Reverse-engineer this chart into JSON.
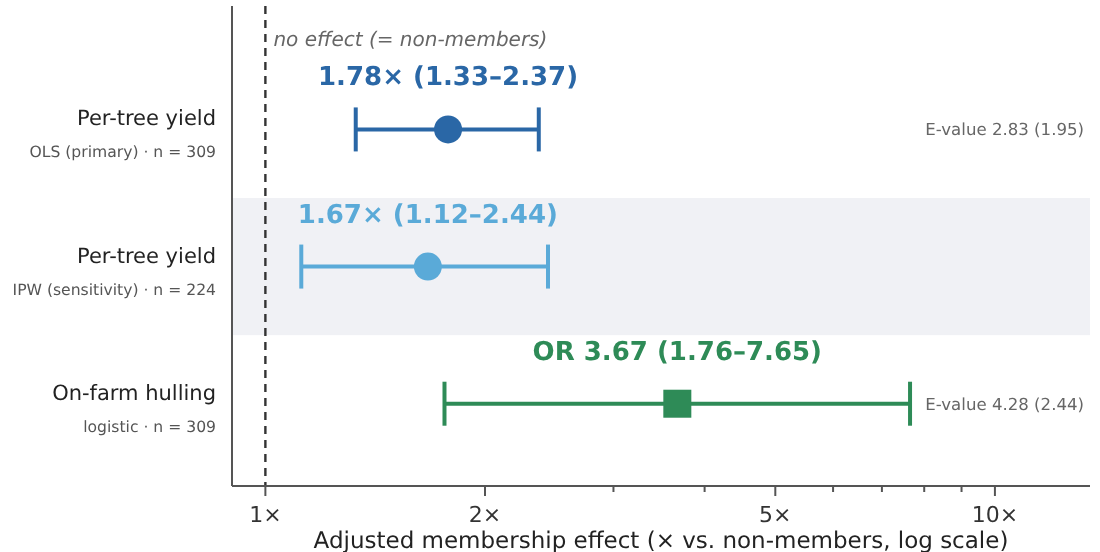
{
  "chart_data": {
    "type": "scatter",
    "orientation": "horizontal",
    "log": "x",
    "xlabel": "Adjusted membership effect (× vs. non-members, log scale)",
    "categories": [
      "Per-tree yield\nOLS (primary) · n = 309",
      "Per-tree yield\nIPW (sensitivity) · n = 224",
      "On-farm hulling\nlogistic · n = 309"
    ],
    "series": [
      {
        "color": "#2a67a6",
        "marker": "circle",
        "values": [
          1.78,
          null,
          null
        ],
        "errors": [
          [
            1.33,
            2.37
          ],
          null,
          null
        ],
        "value_labels": [
          "1.78× (1.33–2.37)",
          null,
          null
        ]
      },
      {
        "color": "#5aaad8",
        "marker": "circle",
        "values": [
          null,
          1.67,
          null
        ],
        "errors": [
          null,
          [
            1.12,
            2.44
          ],
          null
        ],
        "value_labels": [
          null,
          "1.67× (1.12–2.44)",
          null
        ]
      },
      {
        "color": "#2e8b57",
        "marker": "square",
        "values": [
          null,
          null,
          3.67
        ],
        "errors": [
          null,
          null,
          [
            1.76,
            7.65
          ]
        ],
        "value_labels": [
          null,
          null,
          "OR 3.67 (1.76–7.65)"
        ]
      }
    ],
    "xlim": [
      0.9,
      13.5
    ],
    "xticks": [
      {
        "value": 1,
        "label": "1×"
      },
      {
        "value": 2,
        "label": "2×"
      },
      {
        "value": 3,
        "label": null
      },
      {
        "value": 4,
        "label": null
      },
      {
        "value": 5,
        "label": "5×"
      },
      {
        "value": 6,
        "label": null
      },
      {
        "value": 7,
        "label": null
      },
      {
        "value": 8,
        "label": null
      },
      {
        "value": 9,
        "label": null
      },
      {
        "value": 10,
        "label": "10×"
      }
    ],
    "ref_lines": [
      {
        "axis": "x",
        "value": 1,
        "label": "no effect (= non-members)",
        "color": "#333333",
        "line_style": "dashed"
      }
    ],
    "annotations": [
      "E-value 2.83 (1.95)",
      "E-value 4.28 (2.44)"
    ],
    "bands": [
      {
        "axis": "y",
        "from": "Per-tree yield\nIPW (sensitivity) · n = 224",
        "to": "Per-tree yield\nIPW (sensitivity) · n = 224",
        "color": "#f0f1f5"
      }
    ],
    "grid": false
  }
}
